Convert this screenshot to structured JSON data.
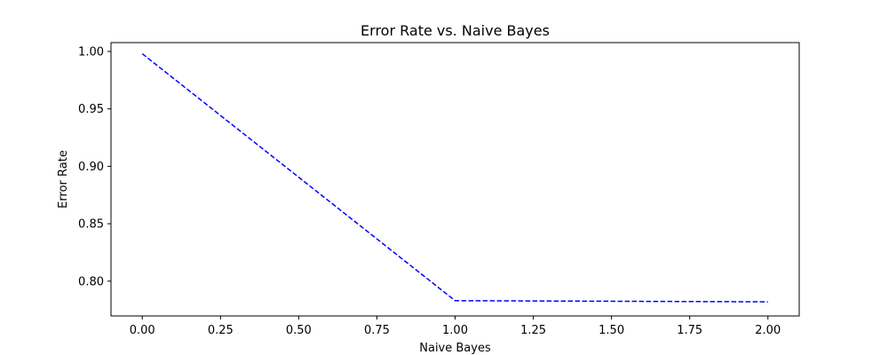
{
  "chart_data": {
    "type": "line",
    "title": "Error Rate vs. Naive Bayes",
    "xlabel": "Naive Bayes",
    "ylabel": "Error Rate",
    "xlim": [
      -0.1,
      2.1
    ],
    "ylim": [
      0.7697,
      1.0077
    ],
    "x_ticks": [
      0.0,
      0.25,
      0.5,
      0.75,
      1.0,
      1.25,
      1.5,
      1.75,
      2.0
    ],
    "x_tick_labels": [
      "0.00",
      "0.25",
      "0.50",
      "0.75",
      "1.00",
      "1.25",
      "1.50",
      "1.75",
      "2.00"
    ],
    "y_ticks": [
      0.8,
      0.85,
      0.9,
      0.95,
      1.0
    ],
    "y_tick_labels": [
      "0.80",
      "0.85",
      "0.90",
      "0.95",
      "1.00"
    ],
    "grid": false,
    "series": [
      {
        "x": [
          0,
          1,
          2
        ],
        "values": [
          0.998,
          0.783,
          0.782
        ],
        "color": "#0000ff",
        "line_style": "dashed"
      }
    ]
  }
}
